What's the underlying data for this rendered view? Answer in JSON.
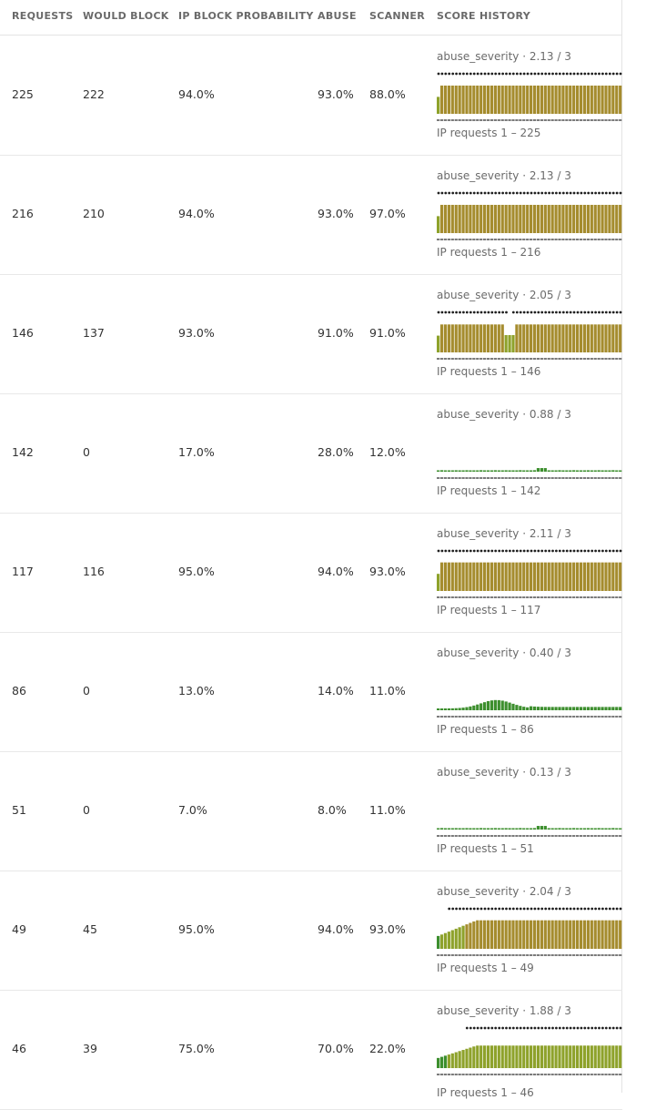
{
  "columns": {
    "requests": "REQUESTS",
    "would_block": "WOULD BLOCK",
    "ip_block_probability": "IP BLOCK PROBABILITY",
    "abuse": "ABUSE",
    "scanner": "SCANNER",
    "score_history": "SCORE HISTORY"
  },
  "colors": {
    "high_bar": "#a58c2e",
    "low_bar": "#3d8f2e",
    "mid_bar": "#8ea22b",
    "dots": "#1f1f1f",
    "strip": "#7b7b7b"
  },
  "rows": [
    {
      "requests": "225",
      "would_block": "222",
      "ip_block_probability": "94.0%",
      "abuse": "93.0%",
      "scanner": "88.0%",
      "score_title": "abuse_severity · 2.13 / 3",
      "footer": "IP requests 1 – 225",
      "level": 0.94,
      "dip": -1,
      "variant": "high",
      "dotStart": 0
    },
    {
      "requests": "216",
      "would_block": "210",
      "ip_block_probability": "94.0%",
      "abuse": "93.0%",
      "scanner": "97.0%",
      "score_title": "abuse_severity · 2.13 / 3",
      "footer": "IP requests 1 – 216",
      "level": 0.94,
      "dip": -1,
      "variant": "high",
      "dotStart": 0
    },
    {
      "requests": "146",
      "would_block": "137",
      "ip_block_probability": "93.0%",
      "abuse": "91.0%",
      "scanner": "91.0%",
      "score_title": "abuse_severity · 2.05 / 3",
      "footer": "IP requests 1 – 146",
      "level": 0.93,
      "dip": 0.39,
      "variant": "high",
      "dotStart": 0
    },
    {
      "requests": "142",
      "would_block": "0",
      "ip_block_probability": "17.0%",
      "abuse": "28.0%",
      "scanner": "12.0%",
      "score_title": "abuse_severity · 0.88 / 3",
      "footer": "IP requests 1 – 142",
      "level": 0.17,
      "dip": -1,
      "variant": "flat",
      "dotStart": 1
    },
    {
      "requests": "117",
      "would_block": "116",
      "ip_block_probability": "95.0%",
      "abuse": "94.0%",
      "scanner": "93.0%",
      "score_title": "abuse_severity · 2.11 / 3",
      "footer": "IP requests 1 – 117",
      "level": 0.95,
      "dip": -1,
      "variant": "high",
      "dotStart": 0
    },
    {
      "requests": "86",
      "would_block": "0",
      "ip_block_probability": "13.0%",
      "abuse": "14.0%",
      "scanner": "11.0%",
      "score_title": "abuse_severity · 0.40 / 3",
      "footer": "IP requests 1 – 86",
      "level": 0.13,
      "dip": -1,
      "variant": "hump",
      "dotStart": 1
    },
    {
      "requests": "51",
      "would_block": "0",
      "ip_block_probability": "7.0%",
      "abuse": "8.0%",
      "scanner": "11.0%",
      "score_title": "abuse_severity · 0.13 / 3",
      "footer": "IP requests 1 – 51",
      "level": 0.07,
      "dip": -1,
      "variant": "flat",
      "dotStart": 1
    },
    {
      "requests": "49",
      "would_block": "45",
      "ip_block_probability": "95.0%",
      "abuse": "94.0%",
      "scanner": "93.0%",
      "score_title": "abuse_severity · 2.04 / 3",
      "footer": "IP requests 1 – 49",
      "level": 0.95,
      "dip": -1,
      "variant": "ramp",
      "dotStart": 0.05
    },
    {
      "requests": "46",
      "would_block": "39",
      "ip_block_probability": "75.0%",
      "abuse": "70.0%",
      "scanner": "22.0%",
      "score_title": "abuse_severity · 1.88 / 3",
      "footer": "IP requests 1 – 46",
      "level": 0.75,
      "dip": -1,
      "variant": "ramp",
      "dotStart": 0.15
    }
  ]
}
